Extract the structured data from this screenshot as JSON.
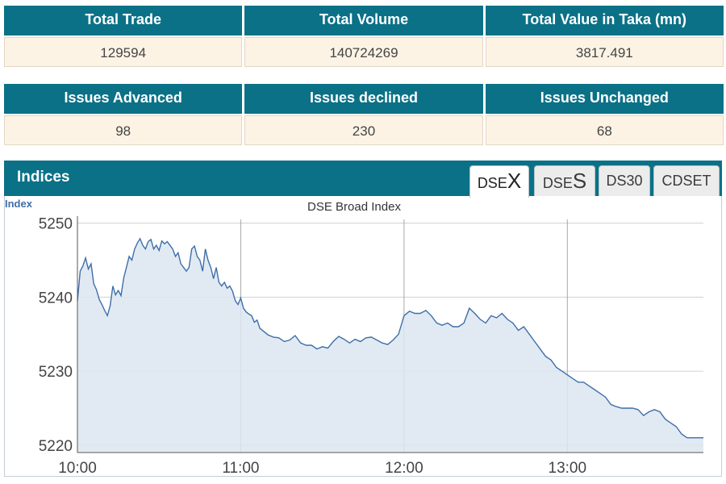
{
  "summary": {
    "headers": [
      "Total Trade",
      "Total Volume",
      "Total Value in Taka (mn)"
    ],
    "values": [
      "129594",
      "140724269",
      "3817.491"
    ]
  },
  "issues": {
    "headers": [
      "Issues Advanced",
      "Issues declined",
      "Issues Unchanged"
    ],
    "values": [
      "98",
      "230",
      "68"
    ]
  },
  "indices_panel": {
    "title": "Indices",
    "tabs": [
      {
        "prefix": "DSE",
        "suffix": "X",
        "active": true
      },
      {
        "prefix": "DSE",
        "suffix": "S",
        "active": false
      },
      {
        "prefix": "",
        "suffix": "DS30",
        "active": false
      },
      {
        "prefix": "",
        "suffix": "CDSET",
        "active": false
      }
    ]
  },
  "colors": {
    "header_bg": "#0b7187",
    "value_bg": "#fdf3e5",
    "line": "#3f6ea8",
    "fill": "#dce6f1"
  },
  "chart_data": {
    "type": "area",
    "title": "DSE Broad Index",
    "ylabel": "Index",
    "xlabel": "",
    "ylim": [
      5219,
      5250.5
    ],
    "yticks": [
      5220,
      5230,
      5240,
      5250
    ],
    "xticks": [
      {
        "label": "10:00",
        "minutes": 0
      },
      {
        "label": "11:00",
        "minutes": 60
      },
      {
        "label": "12:00",
        "minutes": 120
      },
      {
        "label": "13:00",
        "minutes": 180
      }
    ],
    "xlim_minutes": [
      0,
      230
    ],
    "grid": true,
    "series": [
      {
        "x_minutes": [
          0,
          1,
          2,
          3,
          4,
          5,
          6,
          7,
          8,
          9,
          10,
          11,
          12,
          13,
          14,
          15,
          16,
          17,
          18,
          19,
          20,
          21,
          22,
          23,
          24,
          25,
          26,
          27,
          28,
          29,
          30,
          31,
          32,
          33,
          34,
          35,
          36,
          37,
          38,
          39,
          40,
          41,
          42,
          43,
          44,
          45,
          46,
          47,
          48,
          49,
          50,
          51,
          52,
          53,
          54,
          55,
          56,
          57,
          58,
          59,
          60,
          61,
          62,
          63,
          64,
          65,
          66,
          67,
          68,
          70,
          72,
          74,
          76,
          78,
          80,
          82,
          84,
          86,
          88,
          90,
          92,
          94,
          96,
          98,
          100,
          102,
          104,
          106,
          108,
          110,
          112,
          114,
          116,
          118,
          120,
          122,
          124,
          126,
          128,
          130,
          132,
          134,
          136,
          138,
          140,
          142,
          144,
          146,
          148,
          150,
          152,
          154,
          156,
          158,
          160,
          162,
          164,
          166,
          168,
          170,
          172,
          174,
          176,
          178,
          180,
          182,
          184,
          186,
          188,
          190,
          192,
          194,
          196,
          198,
          200,
          202,
          204,
          206,
          208,
          210,
          212,
          214,
          216,
          218,
          220,
          222,
          224,
          226,
          228,
          230
        ],
        "values": [
          5239.5,
          5243.5,
          5244.2,
          5245.3,
          5243.8,
          5244.5,
          5241.8,
          5241.0,
          5239.7,
          5239.0,
          5238.2,
          5237.5,
          5238.8,
          5241.5,
          5240.3,
          5240.9,
          5240.2,
          5242.6,
          5244.0,
          5245.5,
          5245.0,
          5246.5,
          5247.3,
          5247.9,
          5247.0,
          5246.5,
          5247.5,
          5247.8,
          5246.5,
          5247.0,
          5246.3,
          5247.6,
          5247.2,
          5247.5,
          5247.0,
          5246.5,
          5245.5,
          5246.0,
          5244.5,
          5244.0,
          5243.5,
          5244.0,
          5246.5,
          5246.9,
          5245.5,
          5245.0,
          5243.5,
          5246.5,
          5245.0,
          5244.0,
          5242.5,
          5244.0,
          5242.0,
          5241.5,
          5242.0,
          5241.2,
          5241.5,
          5240.8,
          5239.5,
          5239.0,
          5239.9,
          5238.5,
          5238.0,
          5237.7,
          5237.5,
          5236.6,
          5236.9,
          5235.8,
          5235.5,
          5234.9,
          5234.6,
          5234.5,
          5234.0,
          5234.2,
          5234.8,
          5233.8,
          5233.5,
          5233.5,
          5233.0,
          5233.3,
          5233.1,
          5234.0,
          5234.7,
          5234.3,
          5233.8,
          5234.3,
          5234.0,
          5234.5,
          5234.6,
          5234.2,
          5233.8,
          5233.6,
          5234.2,
          5235.0,
          5237.5,
          5238.1,
          5237.8,
          5237.8,
          5238.2,
          5237.5,
          5236.5,
          5236.2,
          5236.5,
          5236.0,
          5236.0,
          5236.5,
          5238.5,
          5237.8,
          5237.0,
          5236.5,
          5237.5,
          5237.2,
          5237.8,
          5237.0,
          5236.5,
          5235.5,
          5236.0,
          5235.0,
          5234.0,
          5233.0,
          5232.0,
          5231.5,
          5230.5,
          5230.0,
          5229.5,
          5229.0,
          5228.5,
          5228.5,
          5228.0,
          5227.5,
          5227.0,
          5226.5,
          5225.5,
          5225.2,
          5225.0,
          5225.0,
          5225.0,
          5224.8,
          5224.0,
          5224.5,
          5224.8,
          5224.5,
          5223.5,
          5223.0,
          5222.5,
          5221.5,
          5221.0,
          5221.0,
          5221.0,
          5221.0
        ]
      }
    ]
  }
}
